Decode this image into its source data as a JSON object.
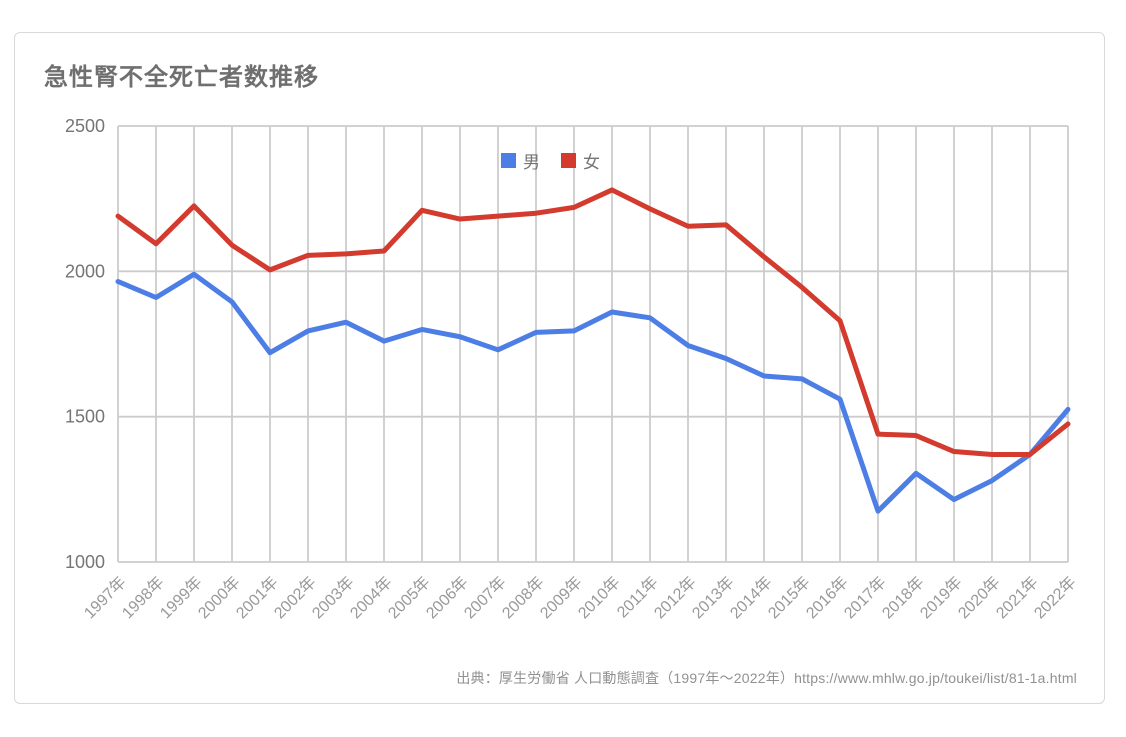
{
  "card": {
    "title": "急性腎不全死亡者数推移",
    "source": "出典：厚生労働省 人口動態調査（1997年～2022年）https://www.mhlw.go.jp/toukei/list/81-1a.html"
  },
  "colors": {
    "male_line": "#4D7EE5",
    "female_line": "#D23B2D",
    "grid": "#cccccc",
    "y_tick_text": "#757575",
    "x_tick_text": "#999999",
    "title_text": "#6f6f6f",
    "legend_text": "#757575",
    "source_text": "#919191",
    "card_border": "#d9d9d9"
  },
  "chart_data": {
    "type": "line",
    "title": "急性腎不全死亡者数推移",
    "categories": [
      "1997年",
      "1998年",
      "1999年",
      "2000年",
      "2001年",
      "2002年",
      "2003年",
      "2004年",
      "2005年",
      "2006年",
      "2007年",
      "2008年",
      "2009年",
      "2010年",
      "2011年",
      "2012年",
      "2013年",
      "2014年",
      "2015年",
      "2016年",
      "2017年",
      "2018年",
      "2019年",
      "2020年",
      "2021年",
      "2022年"
    ],
    "series": [
      {
        "name": "男",
        "color": "#4D7EE5",
        "values": [
          1965,
          1910,
          1990,
          1895,
          1720,
          1795,
          1825,
          1760,
          1800,
          1775,
          1730,
          1790,
          1795,
          1860,
          1840,
          1745,
          1700,
          1640,
          1630,
          1560,
          1175,
          1305,
          1215,
          1280,
          1370,
          1525
        ]
      },
      {
        "name": "女",
        "color": "#D23B2D",
        "values": [
          2190,
          2095,
          2225,
          2090,
          2005,
          2055,
          2060,
          2070,
          2210,
          2180,
          2190,
          2200,
          2220,
          2280,
          2215,
          2155,
          2160,
          2050,
          1945,
          1830,
          1440,
          1435,
          1380,
          1370,
          1370,
          1475
        ]
      }
    ],
    "xlabel": "",
    "ylabel": "",
    "ylim": [
      1000,
      2500
    ],
    "yticks": [
      1000,
      1500,
      2000,
      2500
    ],
    "grid": true,
    "legend_position": "top-center"
  }
}
